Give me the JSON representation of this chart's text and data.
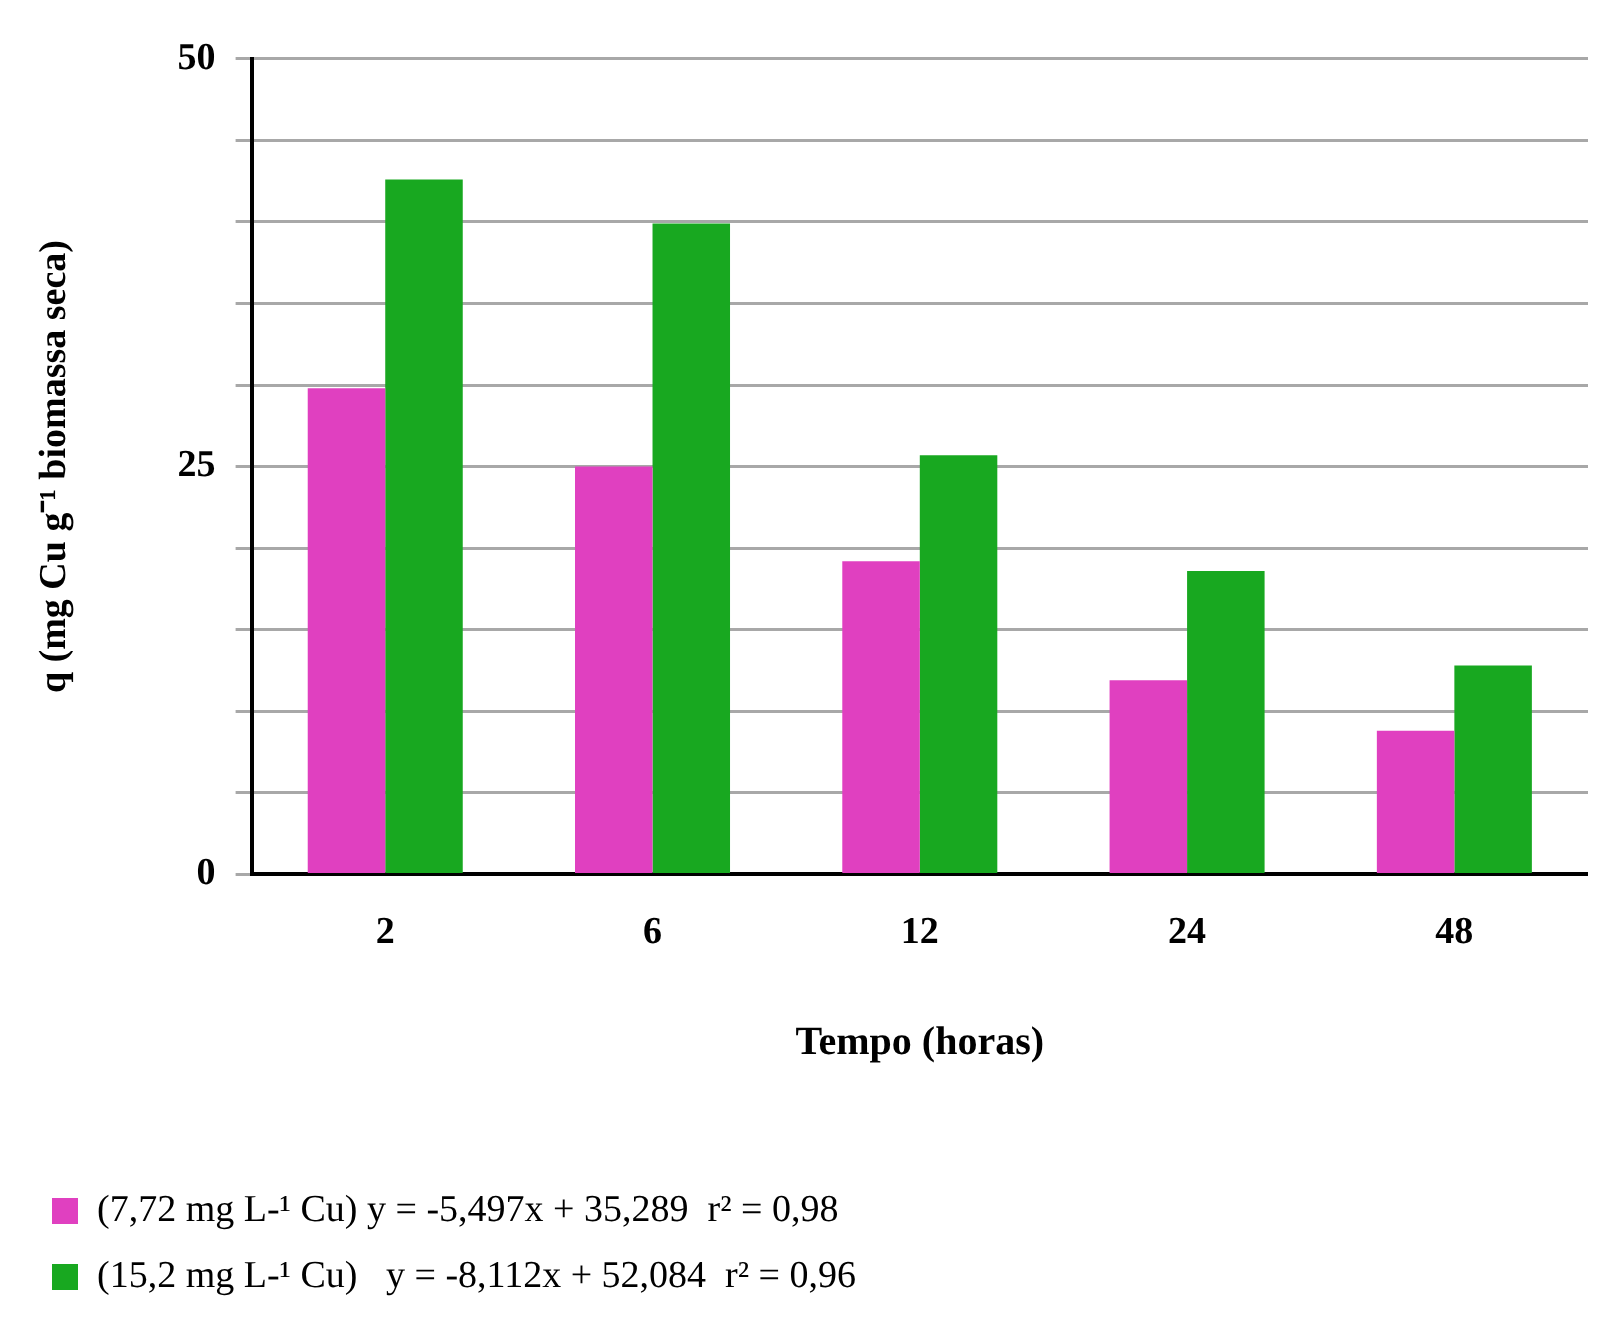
{
  "chart_data": {
    "type": "bar",
    "xlabel": "Tempo (horas)",
    "ylabel": "q (mg Cu g⁻¹ biomassa seca)",
    "categories": [
      "2",
      "6",
      "12",
      "24",
      "48"
    ],
    "series": [
      {
        "name": "(7,72 mg L-¹ Cu) y = -5,497x + 35,289  r² = 0,98",
        "color": "#e040c0",
        "values": [
          29.8,
          25,
          19.2,
          11.9,
          8.8
        ]
      },
      {
        "name": "(15,2 mg L-¹ Cu)   y = -8,112x + 52,084  r² = 0,96",
        "color": "#18a820",
        "values": [
          42.6,
          39.9,
          25.7,
          18.6,
          12.8
        ]
      }
    ],
    "ylim": [
      0,
      50
    ],
    "yticks": [
      0,
      {
        "value": 5,
        "label": null
      },
      {
        "value": 10,
        "label": null
      },
      {
        "value": 15,
        "label": null
      },
      {
        "value": 20,
        "label": null
      },
      25,
      {
        "value": 30,
        "label": null
      },
      {
        "value": 35,
        "label": null
      },
      {
        "value": 40,
        "label": null
      },
      {
        "value": 45,
        "label": null
      },
      50
    ],
    "grid": "y",
    "legend": "bottom"
  }
}
